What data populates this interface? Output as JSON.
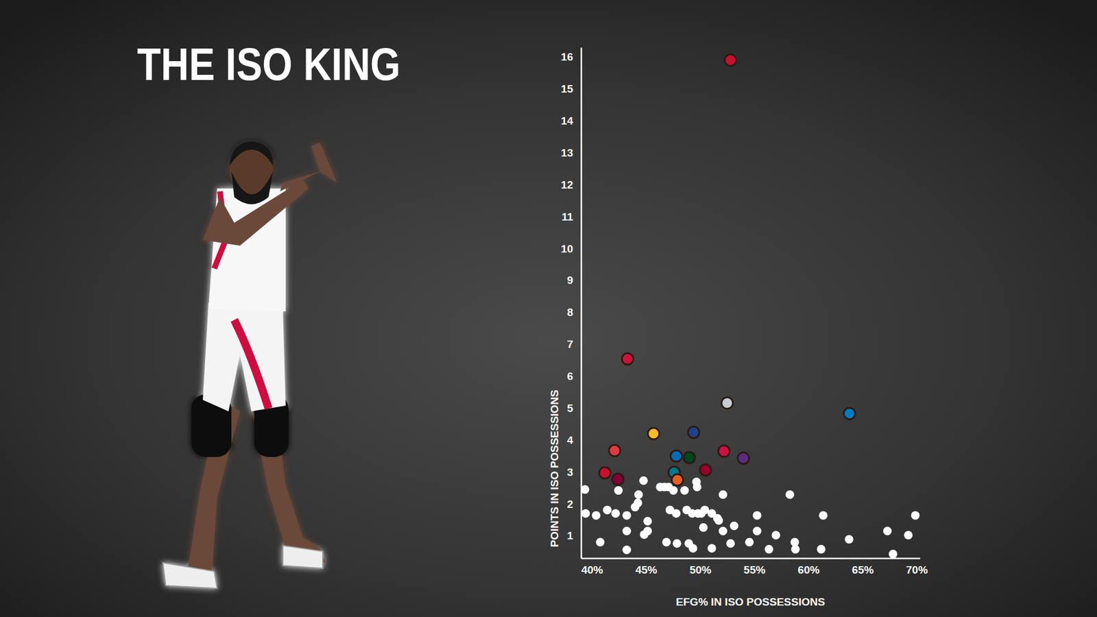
{
  "chart_data": {
    "type": "scatter",
    "title": "THE ISO KING",
    "x_label": "EFG% IN ISO POSSESSIONS",
    "y_label": "POINTS IN ISO POSSESSIONS",
    "marker": "circle",
    "xlim": [
      39,
      70.3
    ],
    "ylim": [
      0.3,
      16.3
    ],
    "xticks": [
      {
        "value": 40,
        "label": "40%"
      },
      {
        "value": 45,
        "label": "45%"
      },
      {
        "value": 50,
        "label": "50%"
      },
      {
        "value": 55,
        "label": "55%"
      },
      {
        "value": 60,
        "label": "60%"
      },
      {
        "value": 65,
        "label": "65%"
      },
      {
        "value": 70,
        "label": "70%"
      }
    ],
    "yticks": [
      1,
      2,
      3,
      4,
      5,
      6,
      7,
      8,
      9,
      10,
      11,
      12,
      13,
      14,
      15,
      16
    ],
    "grid": false,
    "x": [
      52.8,
      43.3,
      52.5,
      63.8,
      45.7,
      49.4,
      42.1,
      47.8,
      49.0,
      52.2,
      54.0,
      41.2,
      42.4,
      47.6,
      47.9,
      50.5,
      39.36,
      39.42,
      40.39,
      40.77,
      41.42,
      42.19,
      42.45,
      43.22,
      43.22,
      43.22,
      43.99,
      44.25,
      44.31,
      44.77,
      44.83,
      45.15,
      45.15,
      46.31,
      46.7,
      46.89,
      47.08,
      47.21,
      47.53,
      47.79,
      47.86,
      48.56,
      48.76,
      48.95,
      49.27,
      49.34,
      49.66,
      49.72,
      49.79,
      50.11,
      50.43,
      50.3,
      51.08,
      51.08,
      51.59,
      51.72,
      52.11,
      52.11,
      52.81,
      53.14,
      54.55,
      55.26,
      55.26,
      56.36,
      57.0,
      58.29,
      58.74,
      58.8,
      61.18,
      61.37,
      63.76,
      67.3,
      67.82,
      69.23,
      69.88
    ],
    "values": [
      15.9,
      6.54,
      5.16,
      4.83,
      4.2,
      4.24,
      3.67,
      3.5,
      3.45,
      3.65,
      3.43,
      2.97,
      2.77,
      2.99,
      2.75,
      3.06,
      2.45,
      1.7,
      1.64,
      0.8,
      1.81,
      1.7,
      2.42,
      1.64,
      1.15,
      0.56,
      1.9,
      2.03,
      2.29,
      2.73,
      1.04,
      1.46,
      1.15,
      2.53,
      2.53,
      0.8,
      2.53,
      1.81,
      2.42,
      1.7,
      0.76,
      2.42,
      1.81,
      0.76,
      1.7,
      0.61,
      2.69,
      2.53,
      1.7,
      1.7,
      1.81,
      1.26,
      1.7,
      0.61,
      1.55,
      1.48,
      2.29,
      1.15,
      0.76,
      1.31,
      0.8,
      1.64,
      1.15,
      0.58,
      1.02,
      2.29,
      0.8,
      0.58,
      0.58,
      1.64,
      0.89,
      1.15,
      0.43,
      1.02,
      1.64
    ],
    "colors": [
      "#c8102e",
      "#ce1141",
      "#c4ced4",
      "#007ac1",
      "#fdb927",
      "#1d428a",
      "#e03a3e",
      "#006bb6",
      "#00471b",
      "#ce1141",
      "#5a2d81",
      "#c8102e",
      "#860038",
      "#00788c",
      "#e56020",
      "#98002e",
      "#ffffff",
      "#ffffff",
      "#ffffff",
      "#ffffff",
      "#ffffff",
      "#ffffff",
      "#ffffff",
      "#ffffff",
      "#ffffff",
      "#ffffff",
      "#ffffff",
      "#ffffff",
      "#ffffff",
      "#ffffff",
      "#ffffff",
      "#ffffff",
      "#ffffff",
      "#ffffff",
      "#ffffff",
      "#ffffff",
      "#ffffff",
      "#ffffff",
      "#ffffff",
      "#ffffff",
      "#ffffff",
      "#ffffff",
      "#ffffff",
      "#ffffff",
      "#ffffff",
      "#ffffff",
      "#ffffff",
      "#ffffff",
      "#ffffff",
      "#ffffff",
      "#ffffff",
      "#ffffff",
      "#ffffff",
      "#ffffff",
      "#ffffff",
      "#ffffff",
      "#ffffff",
      "#ffffff",
      "#ffffff",
      "#ffffff",
      "#ffffff",
      "#ffffff",
      "#ffffff",
      "#ffffff",
      "#ffffff",
      "#ffffff",
      "#ffffff",
      "#ffffff",
      "#ffffff",
      "#ffffff",
      "#ffffff",
      "#ffffff",
      "#ffffff",
      "#ffffff",
      "#ffffff"
    ]
  }
}
